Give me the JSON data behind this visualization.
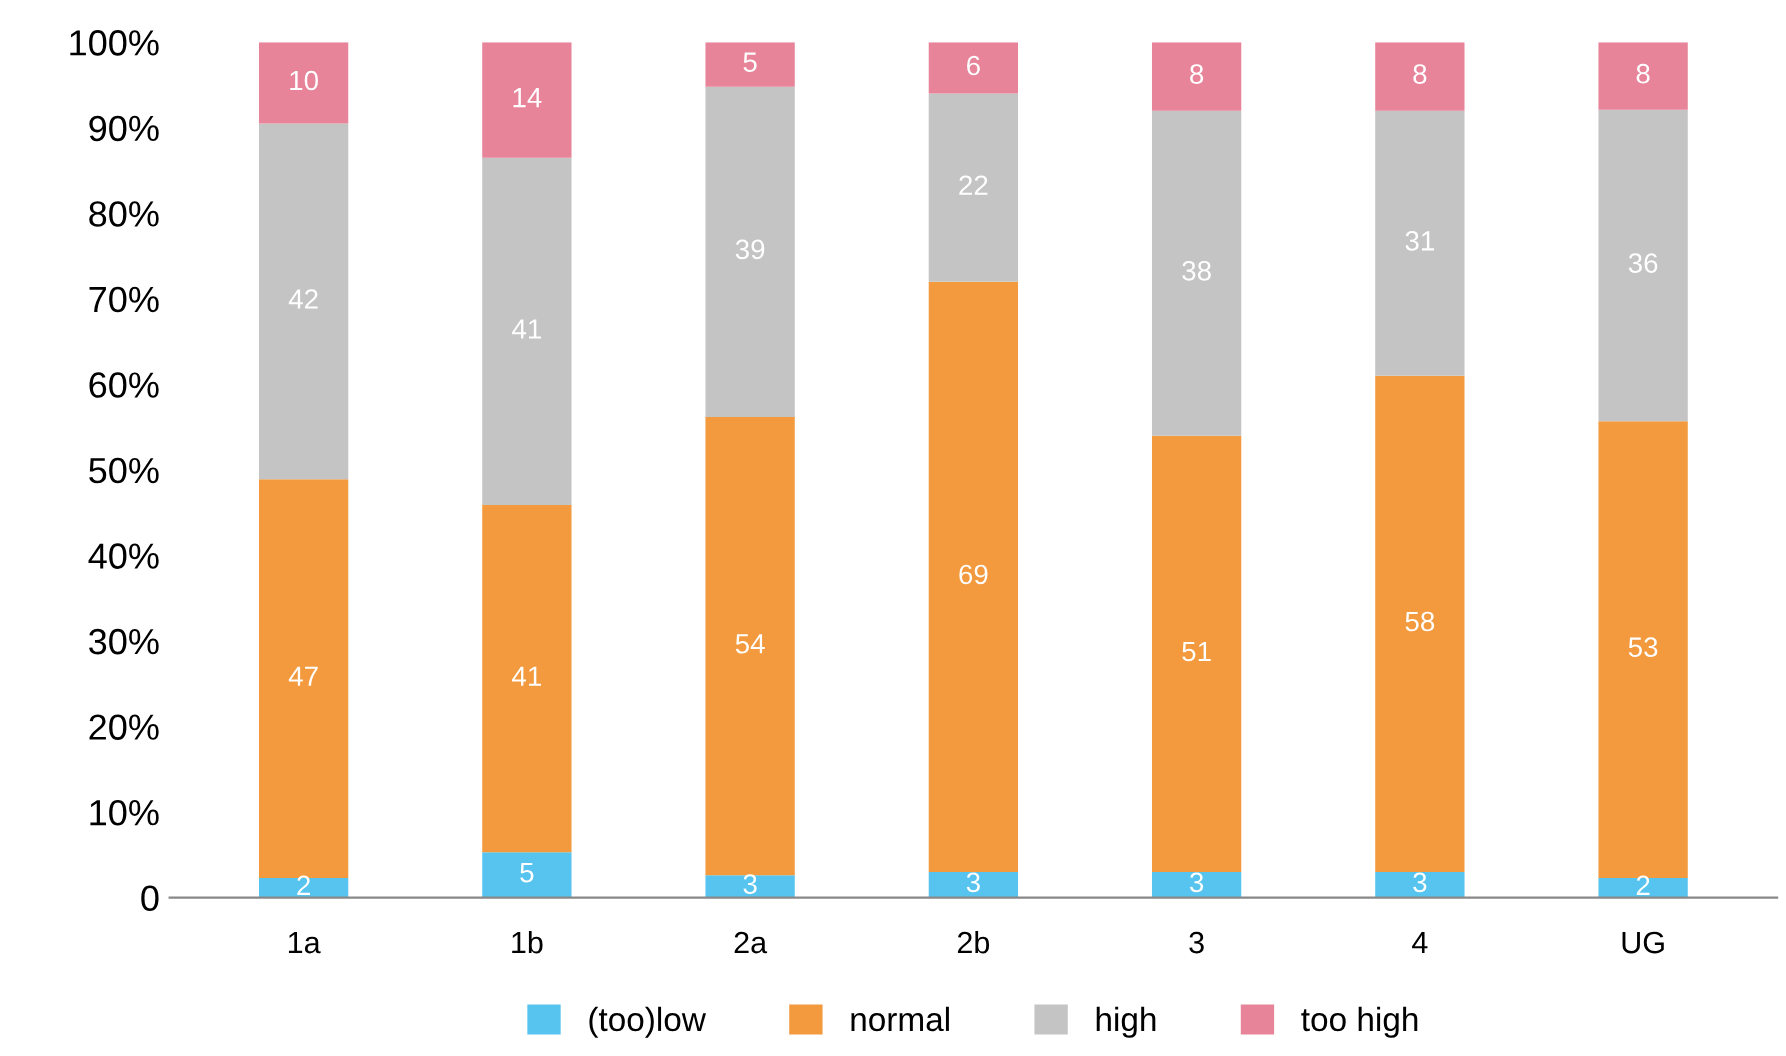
{
  "chart_data": {
    "type": "bar",
    "stacked": true,
    "categories": [
      "1a",
      "1b",
      "2a",
      "2b",
      "3",
      "4",
      "UG"
    ],
    "series": [
      {
        "name": "(too)low",
        "color": "#56c4ee",
        "values": [
          2.3,
          5.3,
          2.6,
          3,
          3,
          3,
          2.3
        ],
        "value_labels": [
          "2",
          "5",
          "3",
          "3",
          "3",
          "3",
          "2"
        ]
      },
      {
        "name": "normal",
        "color": "#f29a3d",
        "values": [
          46.6,
          40.6,
          53.6,
          69,
          51,
          58,
          53.4
        ],
        "value_labels": [
          "47",
          "41",
          "54",
          "69",
          "51",
          "58",
          "53"
        ]
      },
      {
        "name": "high",
        "color": "#c4c4c4",
        "values": [
          41.6,
          40.6,
          38.6,
          22,
          38,
          31,
          36.4
        ],
        "value_labels": [
          "42",
          "41",
          "39",
          "22",
          "38",
          "31",
          "36"
        ]
      },
      {
        "name": "too high",
        "color": "#e8849a",
        "values": [
          9.5,
          13.5,
          5.2,
          6,
          8,
          8,
          7.9
        ],
        "value_labels": [
          "10",
          "14",
          "5",
          "6",
          "8",
          "8",
          "8"
        ]
      }
    ],
    "ylim": [
      0,
      100
    ],
    "yticks": [
      {
        "value": 0,
        "label": "0"
      },
      {
        "value": 10,
        "label": "10%"
      },
      {
        "value": 20,
        "label": "20%"
      },
      {
        "value": 30,
        "label": "30%"
      },
      {
        "value": 40,
        "label": "40%"
      },
      {
        "value": 50,
        "label": "50%"
      },
      {
        "value": 60,
        "label": "60%"
      },
      {
        "value": 70,
        "label": "70%"
      },
      {
        "value": 80,
        "label": "80%"
      },
      {
        "value": 90,
        "label": "90%"
      },
      {
        "value": 100,
        "label": "100%"
      }
    ],
    "grid": false,
    "legend": "bottom"
  }
}
